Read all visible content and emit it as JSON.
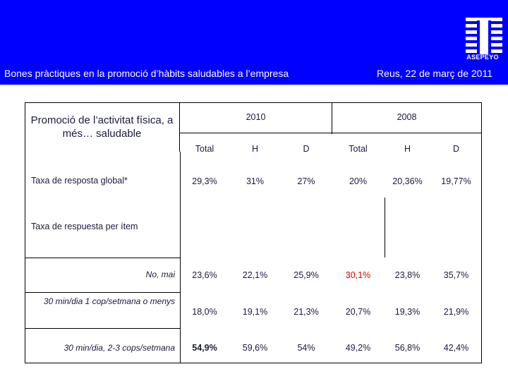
{
  "header": {
    "brand": "ASEPEYO",
    "left_title": "Bones pràctiques en la promoció d’hàbits saludables a l’empresa",
    "right_title": "Reus, 22 de març de 2011",
    "bg_color": "#0000ff"
  },
  "table": {
    "corner_title": "Promoció de l’activitat física, a més… saludable",
    "groups": [
      "2010",
      "2008"
    ],
    "columns": [
      "Total",
      "H",
      "D",
      "Total",
      "H",
      "D"
    ],
    "response_rate": {
      "label": "Taxa de resposta global*",
      "values": [
        "29,3%",
        "31%",
        "27%",
        "20%",
        "20,36%",
        "19,77%"
      ]
    },
    "section_label": "Taxa de respuesta per ítem",
    "rows": [
      {
        "label": "No, mai",
        "values": [
          "23,6%",
          "22,1%",
          "25,9%",
          "30,1%",
          "23,8%",
          "35,7%"
        ]
      },
      {
        "label": "30 min/dia 1 cop/setmana o menys",
        "values": [
          "18,0%",
          "19,1%",
          "21,3%",
          "20,7%",
          "19,3%",
          "21,9%"
        ]
      },
      {
        "label": "30 min/dia, 2-3 cops/setmana",
        "values": [
          "54,9%",
          "59,6%",
          "54%",
          "49,2%",
          "56,8%",
          "42,4%"
        ]
      }
    ],
    "highlight_color": "#e00000"
  }
}
